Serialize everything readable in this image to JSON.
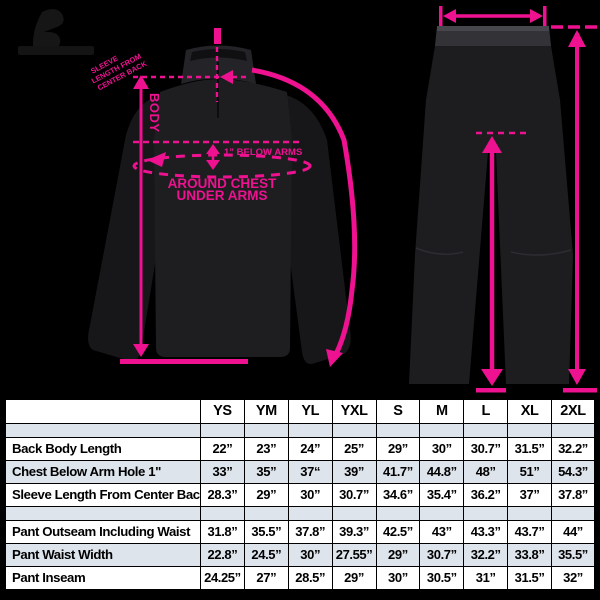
{
  "colors": {
    "accent": "#ee1190",
    "alt_row": "#dde4ec",
    "background": "#000000"
  },
  "diagram": {
    "jacket": {
      "sleeve_label_lines": [
        "SLEEVE",
        "LENGTH FROM",
        "CENTER BACK"
      ],
      "body_label": "BODY",
      "below_arms_label": "1” BELOW ARMS",
      "around_chest_line1": "AROUND CHEST",
      "around_chest_line2": "UNDER ARMS"
    }
  },
  "table": {
    "headers": [
      "",
      "YS",
      "YM",
      "YL",
      "YXL",
      "S",
      "M",
      "L",
      "XL",
      "2XL"
    ],
    "rows": [
      {
        "label": "",
        "spacer": true,
        "values": [
          "",
          "",
          "",
          "",
          "",
          "",
          "",
          "",
          ""
        ]
      },
      {
        "label": "Back Body Length",
        "values": [
          "22”",
          "23”",
          "24”",
          "25”",
          "29”",
          "30”",
          "30.7”",
          "31.5”",
          "32.2”"
        ]
      },
      {
        "label": "Chest Below Arm Hole 1\"",
        "values": [
          "33”",
          "35”",
          "37“",
          "39”",
          "41.7”",
          "44.8”",
          "48”",
          "51”",
          "54.3”"
        ]
      },
      {
        "label": "Sleeve Length From Center Back",
        "values": [
          "28.3”",
          "29”",
          "30”",
          "30.7”",
          "34.6”",
          "35.4”",
          "36.2”",
          "37”",
          "37.8”"
        ]
      },
      {
        "label": "",
        "spacer": true,
        "values": [
          "",
          "",
          "",
          "",
          "",
          "",
          "",
          "",
          ""
        ]
      },
      {
        "label": "Pant Outseam Including Waist",
        "values": [
          "31.8”",
          "35.5”",
          "37.8”",
          "39.3”",
          "42.5”",
          "43”",
          "43.3”",
          "43.7”",
          "44”"
        ]
      },
      {
        "label": "Pant Waist Width",
        "values": [
          "22.8”",
          "24.5”",
          "30”",
          "27.55”",
          "29”",
          "30.7”",
          "32.2”",
          "33.8”",
          "35.5”"
        ]
      },
      {
        "label": "Pant Inseam",
        "values": [
          "24.25”",
          "27”",
          "28.5”",
          "29”",
          "30”",
          "30.5”",
          "31”",
          "31.5”",
          "32”"
        ]
      }
    ]
  }
}
